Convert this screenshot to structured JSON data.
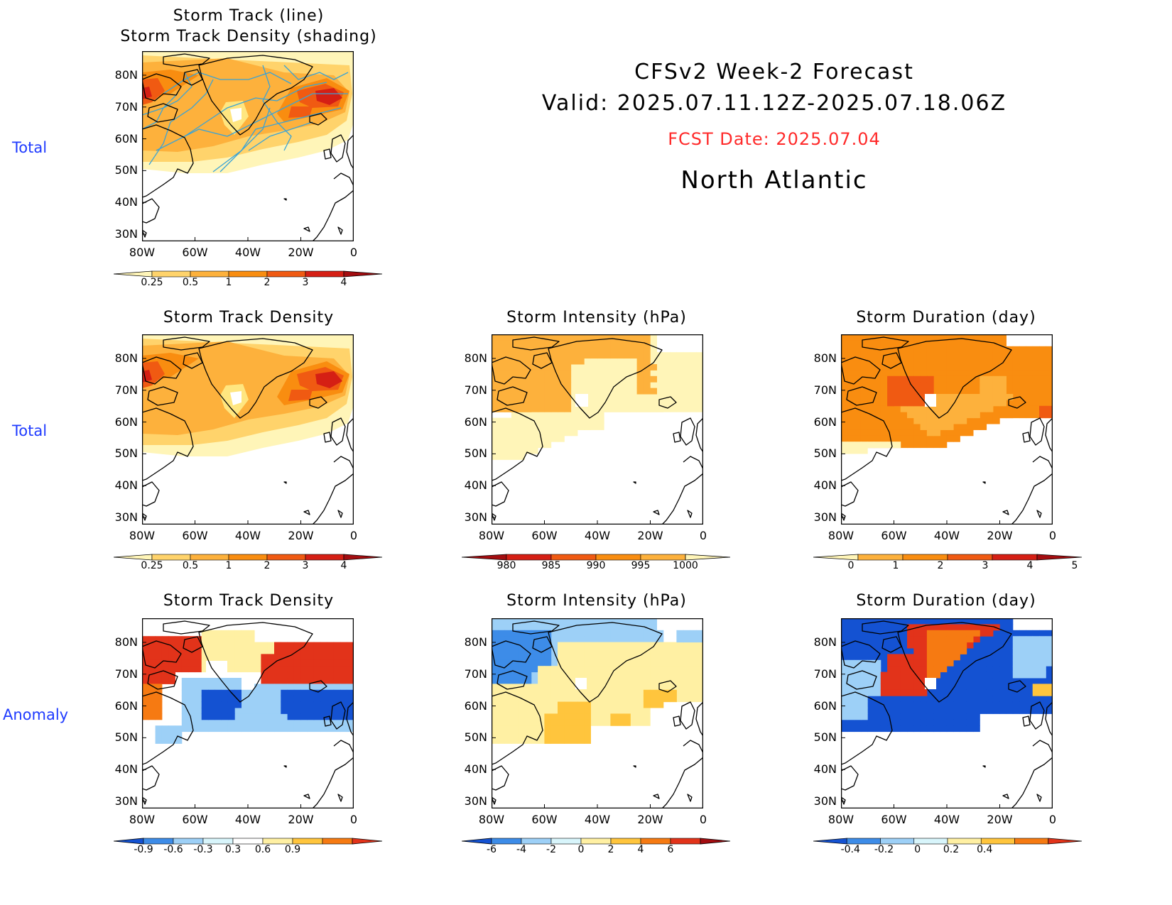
{
  "header": {
    "line1": "CFSv2  Week-2  Forecast",
    "line2": "Valid:  2025.07.11.12Z-2025.07.18.06Z",
    "fcst": "FCST Date: 2025.07.04",
    "region": "North  Atlantic"
  },
  "row_labels": {
    "row1": "Total",
    "row2": "Total",
    "row3": "Anomaly"
  },
  "axes": {
    "lat_ticks": [
      "80N",
      "70N",
      "60N",
      "50N",
      "40N",
      "30N"
    ],
    "lon_ticks": [
      "80W",
      "60W",
      "40W",
      "20W",
      "0"
    ]
  },
  "panels": {
    "top_track": {
      "title1": "Storm Track (line)",
      "title2": "Storm Track Density (shading)"
    },
    "density_total": {
      "title": "Storm Track Density"
    },
    "intensity_total": {
      "title": "Storm Intensity (hPa)"
    },
    "duration_total": {
      "title": "Storm Duration (day)"
    },
    "density_anom": {
      "title": "Storm Track Density"
    },
    "intensity_anom": {
      "title": "Storm Intensity (hPa)"
    },
    "duration_anom": {
      "title": "Storm Duration (day)"
    }
  },
  "colorbars": {
    "density": {
      "labels": [
        "0.25",
        "0.5",
        "1",
        "2",
        "3",
        "4"
      ],
      "colors": [
        "#fff5b8",
        "#ffd36b",
        "#fdb13c",
        "#f98d10",
        "#f05a12",
        "#d51f14",
        "#a30d10"
      ]
    },
    "intensity": {
      "labels": [
        "980",
        "985",
        "990",
        "995",
        "1000"
      ],
      "colors": [
        "#a30d10",
        "#d51f14",
        "#f05a12",
        "#f98d10",
        "#fdb13c",
        "#fff5b8"
      ]
    },
    "duration": {
      "labels": [
        "0",
        "1",
        "2",
        "3",
        "4",
        "5"
      ],
      "colors": [
        "#fff5b8",
        "#fdb13c",
        "#f98d10",
        "#f05a12",
        "#d51f14",
        "#a30d10"
      ]
    },
    "density_anom": {
      "labels": [
        "-0.9",
        "-0.6",
        "-0.3",
        "0.3",
        "0.6",
        "0.9"
      ],
      "colors": [
        "#1452d2",
        "#3d8ce8",
        "#9dd0f7",
        "#d8f5fb",
        "#ffffff",
        "#fff0a3",
        "#ffc53d",
        "#f67a12",
        "#e2331a"
      ]
    },
    "intensity_anom": {
      "labels": [
        "-6",
        "-4",
        "-2",
        "0",
        "2",
        "4",
        "6"
      ],
      "colors": [
        "#1452d2",
        "#3d8ce8",
        "#9dd0f7",
        "#d8f5fb",
        "#fff0a3",
        "#ffc53d",
        "#f67a12",
        "#e2331a",
        "#a30d10"
      ]
    },
    "duration_anom": {
      "labels": [
        "-0.4",
        "-0.2",
        "0",
        "0.2",
        "0.4"
      ],
      "colors": [
        "#1452d2",
        "#3d8ce8",
        "#9dd0f7",
        "#d8f5fb",
        "#fff0a3",
        "#ffc53d",
        "#f67a12",
        "#e2331a"
      ]
    }
  }
}
